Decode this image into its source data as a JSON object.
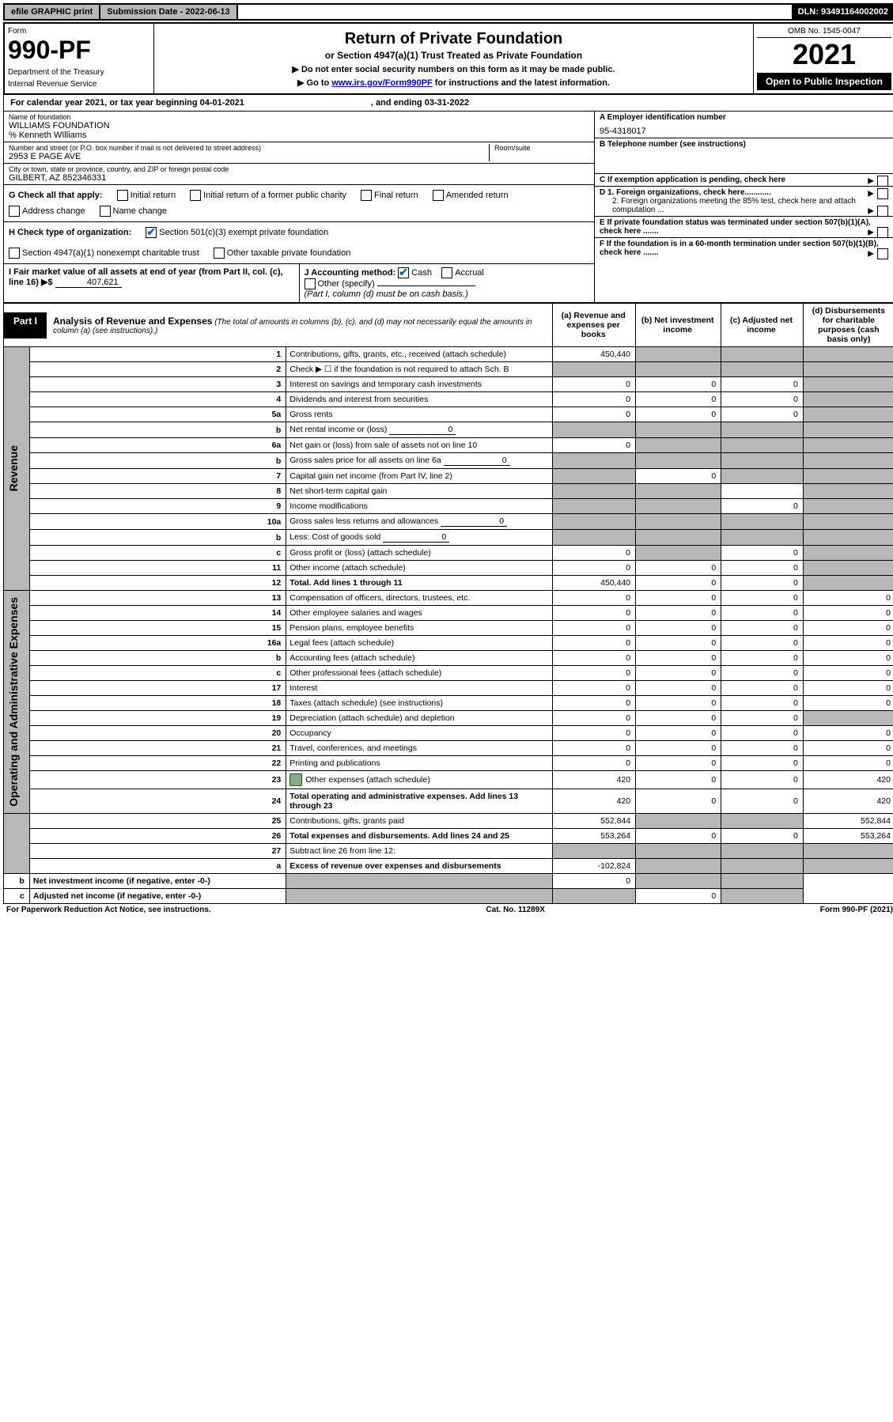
{
  "top_bar": {
    "efile": "efile GRAPHIC print",
    "submission": "Submission Date - 2022-06-13",
    "dln": "DLN: 93491164002002"
  },
  "header": {
    "form_label": "Form",
    "form_number": "990-PF",
    "dept1": "Department of the Treasury",
    "dept2": "Internal Revenue Service",
    "title": "Return of Private Foundation",
    "subtitle": "or Section 4947(a)(1) Trust Treated as Private Foundation",
    "note1": "▶ Do not enter social security numbers on this form as it may be made public.",
    "note2_pre": "▶ Go to ",
    "note2_link": "www.irs.gov/Form990PF",
    "note2_post": " for instructions and the latest information.",
    "omb": "OMB No. 1545-0047",
    "year": "2021",
    "open": "Open to Public Inspection"
  },
  "calendar": {
    "text": "For calendar year 2021, or tax year beginning 04-01-2021",
    "ending": ", and ending 03-31-2022"
  },
  "entity": {
    "name_label": "Name of foundation",
    "name": "WILLIAMS FOUNDATION",
    "care_of": "% Kenneth WIlliams",
    "addr_label": "Number and street (or P.O. box number if mail is not delivered to street address)",
    "addr": "2953 E PAGE AVE",
    "room_label": "Room/suite",
    "city_label": "City or town, state or province, country, and ZIP or foreign postal code",
    "city": "GILBERT, AZ  852346331",
    "ein_label": "A Employer identification number",
    "ein": "95-4318017",
    "phone_label": "B Telephone number (see instructions)",
    "c_label": "C If exemption application is pending, check here",
    "d1": "D 1. Foreign organizations, check here............",
    "d2": "2. Foreign organizations meeting the 85% test, check here and attach computation ...",
    "e": "E  If private foundation status was terminated under section 507(b)(1)(A), check here .......",
    "f": "F  If the foundation is in a 60-month termination under section 507(b)(1)(B), check here .......",
    "g_label": "G Check all that apply:",
    "g_opts": [
      "Initial return",
      "Initial return of a former public charity",
      "Final return",
      "Amended return",
      "Address change",
      "Name change"
    ],
    "h_label": "H Check type of organization:",
    "h_opt1": "Section 501(c)(3) exempt private foundation",
    "h_opt2": "Section 4947(a)(1) nonexempt charitable trust",
    "h_opt3": "Other taxable private foundation",
    "i_label": "I Fair market value of all assets at end of year (from Part II, col. (c), line 16) ▶$",
    "i_value": "407,621",
    "j_label": "J Accounting method:",
    "j_cash": "Cash",
    "j_accrual": "Accrual",
    "j_other": "Other (specify)",
    "j_note": "(Part I, column (d) must be on cash basis.)"
  },
  "part1": {
    "label": "Part I",
    "title": "Analysis of Revenue and Expenses",
    "note": "(The total of amounts in columns (b), (c), and (d) may not necessarily equal the amounts in column (a) (see instructions).)",
    "col_a": "(a)   Revenue and expenses per books",
    "col_b": "(b)   Net investment income",
    "col_c": "(c)   Adjusted net income",
    "col_d": "(d)   Disbursements for charitable purposes (cash basis only)"
  },
  "vlabels": {
    "revenue": "Revenue",
    "opex": "Operating and Administrative Expenses"
  },
  "rows": [
    {
      "n": "1",
      "desc": "Contributions, gifts, grants, etc., received (attach schedule)",
      "a": "450,440",
      "b": "",
      "c": "",
      "d": "",
      "bs": true,
      "cs": true,
      "ds": true
    },
    {
      "n": "2",
      "desc": "Check ▶ ☐ if the foundation is not required to attach Sch. B",
      "dots": true,
      "a": "",
      "b": "",
      "c": "",
      "d": "",
      "as": true,
      "bs": true,
      "cs": true,
      "ds": true
    },
    {
      "n": "3",
      "desc": "Interest on savings and temporary cash investments",
      "a": "0",
      "b": "0",
      "c": "0",
      "d": "",
      "ds": true
    },
    {
      "n": "4",
      "desc": "Dividends and interest from securities",
      "dots": true,
      "a": "0",
      "b": "0",
      "c": "0",
      "d": "",
      "ds": true
    },
    {
      "n": "5a",
      "desc": "Gross rents",
      "dots": true,
      "a": "0",
      "b": "0",
      "c": "0",
      "d": "",
      "ds": true
    },
    {
      "n": "b",
      "desc": "Net rental income or (loss)",
      "inline": "0",
      "a": "",
      "b": "",
      "c": "",
      "d": "",
      "as": true,
      "bs": true,
      "cs": true,
      "ds": true
    },
    {
      "n": "6a",
      "desc": "Net gain or (loss) from sale of assets not on line 10",
      "a": "0",
      "b": "",
      "c": "",
      "d": "",
      "bs": true,
      "cs": true,
      "ds": true
    },
    {
      "n": "b",
      "desc": "Gross sales price for all assets on line 6a",
      "inline": "0",
      "a": "",
      "b": "",
      "c": "",
      "d": "",
      "as": true,
      "bs": true,
      "cs": true,
      "ds": true
    },
    {
      "n": "7",
      "desc": "Capital gain net income (from Part IV, line 2)",
      "dots": true,
      "a": "",
      "b": "0",
      "c": "",
      "d": "",
      "as": true,
      "cs": true,
      "ds": true
    },
    {
      "n": "8",
      "desc": "Net short-term capital gain",
      "dots": true,
      "a": "",
      "b": "",
      "c": "",
      "d": "",
      "as": true,
      "bs": true,
      "ds": true
    },
    {
      "n": "9",
      "desc": "Income modifications",
      "dots": true,
      "a": "",
      "b": "",
      "c": "0",
      "d": "",
      "as": true,
      "bs": true,
      "ds": true
    },
    {
      "n": "10a",
      "desc": "Gross sales less returns and allowances",
      "inline": "0",
      "a": "",
      "b": "",
      "c": "",
      "d": "",
      "as": true,
      "bs": true,
      "cs": true,
      "ds": true
    },
    {
      "n": "b",
      "desc": "Less: Cost of goods sold",
      "dots": true,
      "inline": "0",
      "a": "",
      "b": "",
      "c": "",
      "d": "",
      "as": true,
      "bs": true,
      "cs": true,
      "ds": true
    },
    {
      "n": "c",
      "desc": "Gross profit or (loss) (attach schedule)",
      "dots": true,
      "a": "0",
      "b": "",
      "c": "0",
      "d": "",
      "bs": true,
      "ds": true
    },
    {
      "n": "11",
      "desc": "Other income (attach schedule)",
      "dots": true,
      "a": "0",
      "b": "0",
      "c": "0",
      "d": "",
      "ds": true
    },
    {
      "n": "12",
      "desc": "Total. Add lines 1 through 11",
      "dots": true,
      "bold": true,
      "a": "450,440",
      "b": "0",
      "c": "0",
      "d": "",
      "ds": true
    },
    {
      "n": "13",
      "desc": "Compensation of officers, directors, trustees, etc.",
      "a": "0",
      "b": "0",
      "c": "0",
      "d": "0"
    },
    {
      "n": "14",
      "desc": "Other employee salaries and wages",
      "dots": true,
      "a": "0",
      "b": "0",
      "c": "0",
      "d": "0"
    },
    {
      "n": "15",
      "desc": "Pension plans, employee benefits",
      "dots": true,
      "a": "0",
      "b": "0",
      "c": "0",
      "d": "0"
    },
    {
      "n": "16a",
      "desc": "Legal fees (attach schedule)",
      "dots": true,
      "a": "0",
      "b": "0",
      "c": "0",
      "d": "0"
    },
    {
      "n": "b",
      "desc": "Accounting fees (attach schedule)",
      "dots": true,
      "a": "0",
      "b": "0",
      "c": "0",
      "d": "0"
    },
    {
      "n": "c",
      "desc": "Other professional fees (attach schedule)",
      "dots": true,
      "a": "0",
      "b": "0",
      "c": "0",
      "d": "0"
    },
    {
      "n": "17",
      "desc": "Interest",
      "dots": true,
      "a": "0",
      "b": "0",
      "c": "0",
      "d": "0"
    },
    {
      "n": "18",
      "desc": "Taxes (attach schedule) (see instructions)",
      "dots": true,
      "a": "0",
      "b": "0",
      "c": "0",
      "d": "0"
    },
    {
      "n": "19",
      "desc": "Depreciation (attach schedule) and depletion",
      "dots": true,
      "a": "0",
      "b": "0",
      "c": "0",
      "d": "",
      "ds": true
    },
    {
      "n": "20",
      "desc": "Occupancy",
      "dots": true,
      "a": "0",
      "b": "0",
      "c": "0",
      "d": "0"
    },
    {
      "n": "21",
      "desc": "Travel, conferences, and meetings",
      "dots": true,
      "a": "0",
      "b": "0",
      "c": "0",
      "d": "0"
    },
    {
      "n": "22",
      "desc": "Printing and publications",
      "dots": true,
      "a": "0",
      "b": "0",
      "c": "0",
      "d": "0"
    },
    {
      "n": "23",
      "desc": "Other expenses (attach schedule)",
      "dots": true,
      "icon": true,
      "a": "420",
      "b": "0",
      "c": "0",
      "d": "420"
    },
    {
      "n": "24",
      "desc": "Total operating and administrative expenses. Add lines 13 through 23",
      "dots": true,
      "bold": true,
      "a": "420",
      "b": "0",
      "c": "0",
      "d": "420"
    },
    {
      "n": "25",
      "desc": "Contributions, gifts, grants paid",
      "dots": true,
      "a": "552,844",
      "b": "",
      "c": "",
      "d": "552,844",
      "bs": true,
      "cs": true
    },
    {
      "n": "26",
      "desc": "Total expenses and disbursements. Add lines 24 and 25",
      "bold": true,
      "a": "553,264",
      "b": "0",
      "c": "0",
      "d": "553,264"
    },
    {
      "n": "27",
      "desc": "Subtract line 26 from line 12:",
      "a": "",
      "b": "",
      "c": "",
      "d": "",
      "as": true,
      "bs": true,
      "cs": true,
      "ds": true
    },
    {
      "n": "a",
      "desc": "Excess of revenue over expenses and disbursements",
      "bold": true,
      "a": "-102,824",
      "b": "",
      "c": "",
      "d": "",
      "bs": true,
      "cs": true,
      "ds": true
    },
    {
      "n": "b",
      "desc": "Net investment income (if negative, enter -0-)",
      "bold": true,
      "a": "",
      "b": "0",
      "c": "",
      "d": "",
      "as": true,
      "cs": true,
      "ds": true
    },
    {
      "n": "c",
      "desc": "Adjusted net income (if negative, enter -0-)",
      "bold": true,
      "dots": true,
      "a": "",
      "b": "",
      "c": "0",
      "d": "",
      "as": true,
      "bs": true,
      "ds": true
    }
  ],
  "footer": {
    "left": "For Paperwork Reduction Act Notice, see instructions.",
    "mid": "Cat. No. 11289X",
    "right": "Form 990-PF (2021)"
  }
}
